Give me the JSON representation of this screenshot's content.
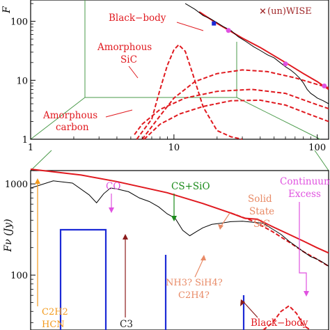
{
  "chart_data": [
    {
      "type": "line",
      "panel": "top",
      "xscale": "log",
      "yscale": "log",
      "xlim": [
        1,
        120
      ],
      "ylim": [
        1,
        230
      ],
      "xticks": [
        {
          "v": 1,
          "label": "1"
        },
        {
          "v": 10,
          "label": "10"
        },
        {
          "v": 100,
          "label": "100"
        }
      ],
      "yticks": [
        {
          "v": 1,
          "label": "1"
        },
        {
          "v": 10,
          "label": "10"
        },
        {
          "v": 100,
          "label": "100"
        }
      ],
      "ylabel": "F",
      "legend": {
        "marker": "×",
        "text": "(un)WISE",
        "color": "#a0282a"
      },
      "annotations": {
        "blackbody": "Black−body",
        "sic": [
          "Amorphous",
          "SiC"
        ],
        "carbon": [
          "Amorphous",
          "carbon"
        ]
      },
      "series": [
        {
          "name": "Black-body",
          "style": "solid",
          "color": "#e0191f",
          "x": [
            15,
            20,
            30,
            40,
            60,
            80,
            100,
            120
          ],
          "y": [
            145,
            92,
            52,
            36,
            20,
            13,
            9.5,
            7
          ]
        },
        {
          "name": "Amorphous SiC",
          "style": "dashed",
          "color": "#e0191f",
          "x": [
            5.5,
            7,
            8,
            9,
            10,
            10.8,
            12,
            13.5,
            16,
            20,
            25,
            30
          ],
          "y": [
            1.0,
            2.2,
            7,
            18,
            33,
            40,
            31,
            13,
            3.5,
            1.4,
            1.1,
            1.0
          ]
        },
        {
          "name": "Amorphous SiC broad",
          "style": "dashed",
          "color": "#e0191f",
          "x": [
            6,
            8,
            10,
            14,
            20,
            30,
            45,
            70,
            100,
            120
          ],
          "y": [
            1.0,
            2.5,
            5,
            9.5,
            13,
            15,
            14,
            11,
            8.5,
            7.5
          ]
        },
        {
          "name": "Amorphous carbon",
          "style": "dashed",
          "color": "#e0191f",
          "x": [
            5.3,
            6,
            8,
            12,
            20,
            35,
            60,
            90,
            120
          ],
          "y": [
            1.2,
            1.8,
            3.2,
            5,
            6.5,
            7,
            6,
            4.2,
            3.3
          ]
        },
        {
          "name": "Amorphous carbon 2",
          "style": "dashed",
          "color": "#e0191f",
          "x": [
            6.2,
            8,
            11,
            16,
            25,
            40,
            60,
            90,
            120
          ],
          "y": [
            1.0,
            1.8,
            2.7,
            3.6,
            4.5,
            4.6,
            3.8,
            2.6,
            2.0
          ]
        },
        {
          "name": "Spectrum",
          "style": "solid",
          "color": "#000000",
          "x": [
            12,
            14,
            16,
            18,
            20,
            22,
            25,
            28,
            32,
            36,
            40,
            45,
            50,
            55,
            60,
            65,
            70,
            75,
            80,
            85,
            90,
            95,
            100,
            110,
            120
          ],
          "y": [
            200,
            160,
            125,
            110,
            95,
            82,
            70,
            55,
            45,
            37,
            32,
            27,
            24,
            20,
            17,
            15,
            13,
            11,
            9,
            7,
            6,
            5.5,
            5,
            4.5,
            4
          ]
        }
      ],
      "points": {
        "blue": [
          {
            "x": 19,
            "y": 92
          }
        ],
        "magenta": [
          {
            "x": 24,
            "y": 70
          },
          {
            "x": 60,
            "y": 19
          },
          {
            "x": 112,
            "y": 8
          }
        ]
      }
    },
    {
      "type": "line",
      "panel": "bottom",
      "xscale": "log",
      "yscale": "log",
      "xlim": [
        1,
        11
      ],
      "ylim": [
        25,
        1400
      ],
      "yticks": [
        {
          "v": 100,
          "label": "100"
        },
        {
          "v": 1000,
          "label": "1000"
        }
      ],
      "ylabel": "Fν (Jy)",
      "annotations": {
        "co": "CO",
        "cs_sio": "CS+SiO",
        "solid_sic": [
          "Solid",
          "State",
          "SiC"
        ],
        "continuum": [
          "Continuum",
          "Excess"
        ],
        "nh3": [
          "NH3? SiH4?",
          "C2H4?"
        ],
        "c3": "C3",
        "c2h2": [
          "C2H2",
          "HCN"
        ],
        "blackbody": "Black−body"
      },
      "series": [
        {
          "name": "Black-body fit",
          "style": "solid",
          "color": "#e0191f",
          "x": [
            1,
            1.5,
            2,
            3,
            4,
            5,
            5.6,
            6.2,
            7,
            8,
            9,
            10,
            11
          ],
          "y": [
            1450,
            1250,
            1060,
            800,
            610,
            480,
            420,
            410,
            340,
            280,
            235,
            200,
            175
          ]
        },
        {
          "name": "Black-body",
          "style": "dashed",
          "color": "#e0191f",
          "x": [
            5,
            6,
            7,
            8,
            9,
            10,
            11
          ],
          "y": [
            480,
            390,
            300,
            230,
            180,
            150,
            125
          ]
        },
        {
          "name": "Solid State SiC",
          "style": "dashed",
          "color": "#e0191f",
          "x": [
            6.5,
            7,
            7.5,
            8,
            8.5,
            9,
            9.5
          ],
          "y": [
            25,
            30,
            40,
            46,
            38,
            28,
            25
          ]
        },
        {
          "name": "Spectrum",
          "style": "solid",
          "color": "#000000",
          "x": [
            1.0,
            1.2,
            1.4,
            1.6,
            1.7,
            1.8,
            1.9,
            2.0,
            2.2,
            2.4,
            2.6,
            2.8,
            3.0,
            3.2,
            3.4,
            3.6,
            3.8,
            4.0,
            4.3,
            4.6,
            5.0,
            5.5,
            6.0,
            6.5,
            7.0,
            7.5,
            8.0,
            8.5,
            9.0,
            9.5,
            10.0,
            10.5,
            11.0
          ],
          "y": [
            900,
            1080,
            1020,
            760,
            620,
            780,
            900,
            880,
            820,
            700,
            640,
            560,
            470,
            420,
            310,
            270,
            300,
            330,
            360,
            370,
            385,
            390,
            380,
            370,
            320,
            280,
            235,
            205,
            180,
            160,
            150,
            138,
            125
          ]
        }
      ],
      "arrows": {
        "c2h2": {
          "color": "#f39a1c"
        },
        "co": {
          "color": "#e052e0"
        },
        "c3": {
          "color": "#8b1c1c"
        },
        "cs_sio": {
          "color": "#1a8a1a"
        },
        "sic": {
          "color": "#e88a66"
        },
        "continuum": {
          "color": "#e052e0"
        },
        "nh3": {
          "color": "#e88a66"
        },
        "blackbody": {
          "color": "#8b1c1c"
        }
      }
    }
  ]
}
